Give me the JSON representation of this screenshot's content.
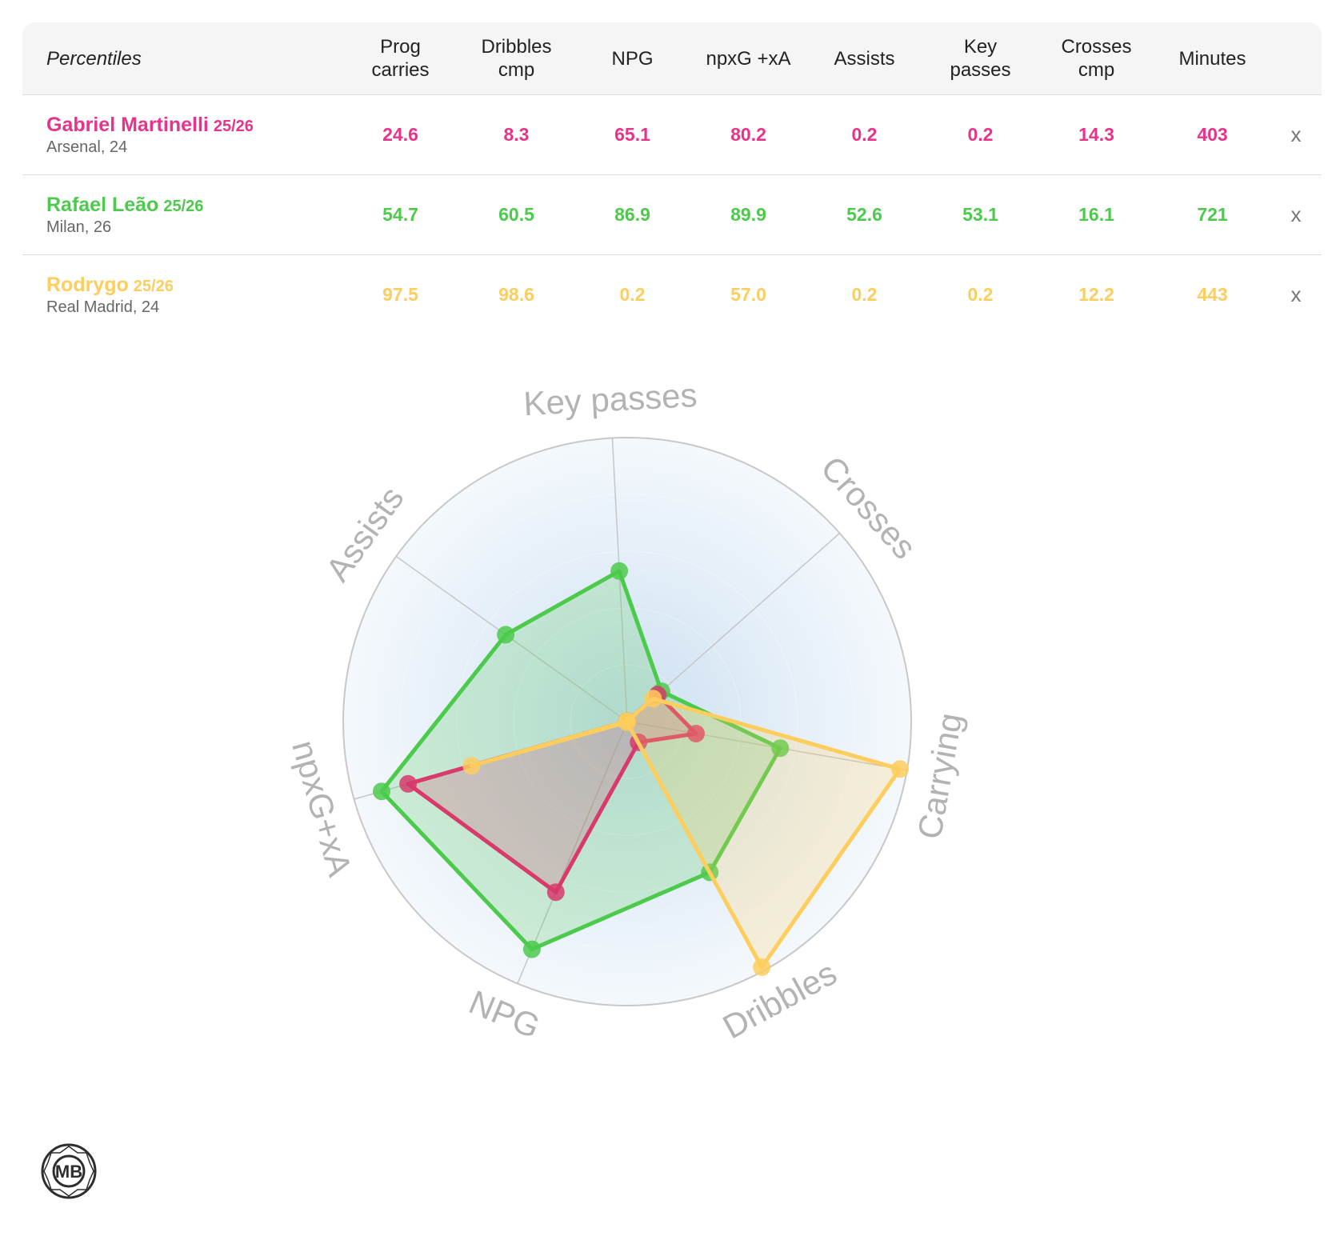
{
  "table": {
    "header_label": "Percentiles",
    "columns": [
      {
        "line1": "Prog",
        "line2": "carries"
      },
      {
        "line1": "Dribbles",
        "line2": "cmp"
      },
      {
        "line1": "NPG",
        "line2": ""
      },
      {
        "line1": "npxG +xA",
        "line2": ""
      },
      {
        "line1": "Assists",
        "line2": ""
      },
      {
        "line1": "Key",
        "line2": "passes"
      },
      {
        "line1": "Crosses",
        "line2": "cmp"
      },
      {
        "line1": "Minutes",
        "line2": ""
      }
    ],
    "remove_label": "x",
    "players": [
      {
        "name": "Gabriel Martinelli",
        "season": "25/26",
        "club": "Arsenal, 24",
        "color": "#e8338a",
        "values": [
          "24.6",
          "8.3",
          "65.1",
          "80.2",
          "0.2",
          "0.2",
          "14.3",
          "403"
        ]
      },
      {
        "name": "Rafael Leão",
        "season": "25/26",
        "club": "Milan, 26",
        "color": "#4cca4c",
        "values": [
          "54.7",
          "60.5",
          "86.9",
          "89.9",
          "52.6",
          "53.1",
          "16.1",
          "721"
        ]
      },
      {
        "name": "Rodrygo",
        "season": "25/26",
        "club": "Real Madrid, 24",
        "color": "#fdcd5d",
        "values": [
          "97.5",
          "98.6",
          "0.2",
          "57.0",
          "0.2",
          "0.2",
          "12.2",
          "443"
        ]
      }
    ]
  },
  "chart_data": {
    "type": "radar",
    "axes": [
      "Key passes",
      "Crosses",
      "Carrying",
      "Dribbles",
      "NPG",
      "npxG+xA",
      "Assists"
    ],
    "range": [
      0,
      100
    ],
    "ring_count": 5,
    "series": [
      {
        "name": "Rafael Leão",
        "color": "#4cca4c",
        "values": [
          53.1,
          16.1,
          54.7,
          60.5,
          86.9,
          89.9,
          52.6
        ]
      },
      {
        "name": "Gabriel Martinelli",
        "color": "#d73a6b",
        "values": [
          0.2,
          14.3,
          24.6,
          8.3,
          65.1,
          80.2,
          0.2
        ]
      },
      {
        "name": "Rodrygo",
        "color": "#fdcd5d",
        "values": [
          0.2,
          12.2,
          97.5,
          98.6,
          0.2,
          57.0,
          0.2
        ]
      }
    ]
  },
  "logo": {
    "text": "MB"
  }
}
